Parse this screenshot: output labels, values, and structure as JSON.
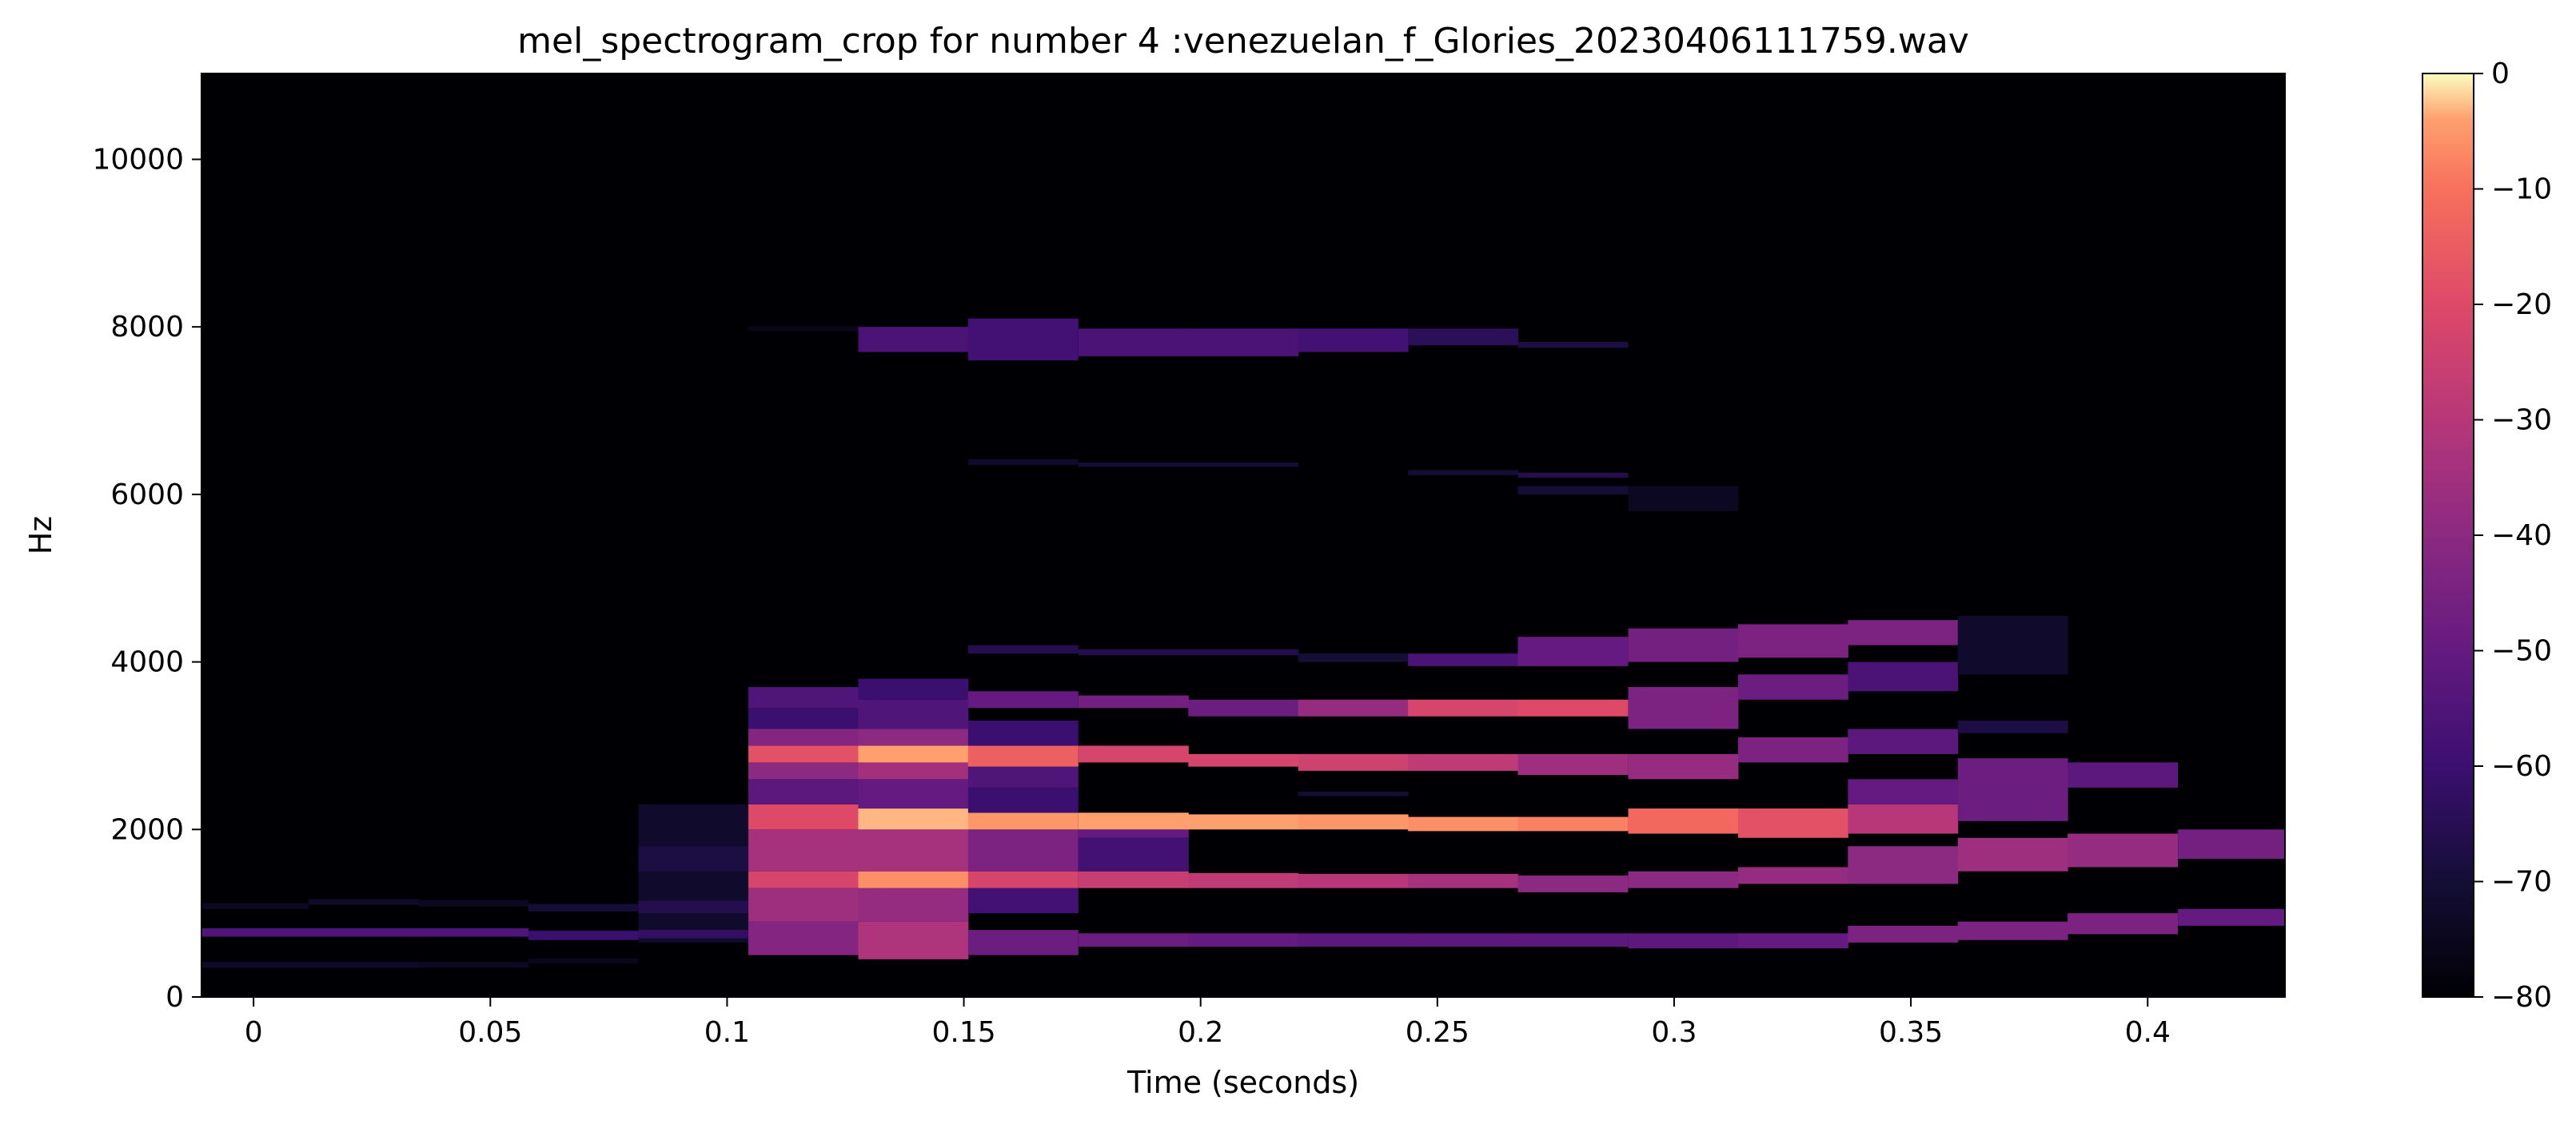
{
  "chart_data": {
    "type": "heatmap",
    "title": "mel_spectrogram_crop for number 4 :venezuelan_f_Glories_20230406111759.wav",
    "xlabel": "Time (seconds)",
    "ylabel": "Hz",
    "xlim": [
      -0.011,
      0.429
    ],
    "ylim": [
      0,
      11025
    ],
    "x_ticks": [
      0,
      0.05,
      0.1,
      0.15,
      0.2,
      0.25,
      0.3,
      0.35,
      0.4
    ],
    "x_tick_labels": [
      "0",
      "0.05",
      "0.1",
      "0.15",
      "0.2",
      "0.25",
      "0.3",
      "0.35",
      "0.4"
    ],
    "y_ticks": [
      0,
      2000,
      4000,
      6000,
      8000,
      10000
    ],
    "y_tick_labels": [
      "0",
      "2000",
      "4000",
      "6000",
      "8000",
      "10000"
    ],
    "colormap": "magma",
    "background_db": -80,
    "frame_seconds": 0.0232,
    "colorbar": {
      "range": [
        -80,
        0
      ],
      "ticks": [
        0,
        -10,
        -20,
        -30,
        -40,
        -50,
        -60,
        -70,
        -80
      ],
      "tick_labels": [
        "0",
        "−10",
        "−20",
        "−30",
        "−40",
        "−50",
        "−60",
        "−70",
        "−80"
      ]
    },
    "frames": [
      {
        "t": 0.0,
        "bands": [
          [
            720,
            820,
            -55
          ],
          [
            350,
            420,
            -73
          ],
          [
            1050,
            1120,
            -74
          ]
        ]
      },
      {
        "t": 0.0232,
        "bands": [
          [
            720,
            820,
            -55
          ],
          [
            350,
            420,
            -73
          ],
          [
            1100,
            1170,
            -73
          ]
        ]
      },
      {
        "t": 0.0464,
        "bands": [
          [
            720,
            820,
            -55
          ],
          [
            350,
            420,
            -74
          ],
          [
            1080,
            1160,
            -74
          ]
        ]
      },
      {
        "t": 0.0696,
        "bands": [
          [
            680,
            790,
            -60
          ],
          [
            1020,
            1110,
            -70
          ],
          [
            400,
            460,
            -75
          ]
        ]
      },
      {
        "t": 0.0929,
        "bands": [
          [
            650,
            2300,
            -72
          ],
          [
            1000,
            1150,
            -66
          ],
          [
            1500,
            1800,
            -68
          ],
          [
            700,
            800,
            -62
          ]
        ]
      },
      {
        "t": 0.1161,
        "bands": [
          [
            500,
            900,
            -42
          ],
          [
            900,
            1300,
            -36
          ],
          [
            1300,
            1500,
            -22
          ],
          [
            1500,
            2000,
            -34
          ],
          [
            2000,
            2300,
            -20
          ],
          [
            2300,
            2600,
            -52
          ],
          [
            2600,
            2800,
            -40
          ],
          [
            2800,
            3000,
            -18
          ],
          [
            3000,
            3200,
            -42
          ],
          [
            3200,
            3450,
            -60
          ],
          [
            3450,
            3700,
            -55
          ],
          [
            7950,
            8010,
            -76
          ]
        ]
      },
      {
        "t": 0.1393,
        "bands": [
          [
            450,
            900,
            -32
          ],
          [
            900,
            1300,
            -38
          ],
          [
            1300,
            1500,
            -6
          ],
          [
            1500,
            2000,
            -34
          ],
          [
            2000,
            2250,
            -3
          ],
          [
            2250,
            2600,
            -50
          ],
          [
            2600,
            2800,
            -35
          ],
          [
            2800,
            3000,
            -4
          ],
          [
            3000,
            3200,
            -40
          ],
          [
            3200,
            3550,
            -55
          ],
          [
            3550,
            3800,
            -60
          ],
          [
            7700,
            8000,
            -56
          ]
        ]
      },
      {
        "t": 0.1625,
        "bands": [
          [
            500,
            800,
            -48
          ],
          [
            1000,
            1300,
            -58
          ],
          [
            1300,
            1500,
            -22
          ],
          [
            1500,
            2000,
            -44
          ],
          [
            2000,
            2200,
            -5
          ],
          [
            2200,
            2500,
            -60
          ],
          [
            2500,
            2750,
            -55
          ],
          [
            2750,
            3000,
            -14
          ],
          [
            3000,
            3300,
            -60
          ],
          [
            3450,
            3650,
            -50
          ],
          [
            4100,
            4200,
            -66
          ],
          [
            6350,
            6420,
            -72
          ],
          [
            7600,
            8100,
            -58
          ]
        ]
      },
      {
        "t": 0.1858,
        "bands": [
          [
            600,
            760,
            -48
          ],
          [
            1300,
            1500,
            -26
          ],
          [
            1500,
            1900,
            -58
          ],
          [
            1900,
            2000,
            -50
          ],
          [
            2000,
            2200,
            -4
          ],
          [
            2800,
            3000,
            -22
          ],
          [
            3450,
            3600,
            -46
          ],
          [
            4080,
            4150,
            -66
          ],
          [
            6330,
            6380,
            -70
          ],
          [
            7650,
            7980,
            -56
          ]
        ]
      },
      {
        "t": 0.209,
        "bands": [
          [
            600,
            760,
            -50
          ],
          [
            1300,
            1480,
            -28
          ],
          [
            2000,
            2180,
            -4
          ],
          [
            2750,
            2900,
            -22
          ],
          [
            3350,
            3550,
            -48
          ],
          [
            4080,
            4150,
            -66
          ],
          [
            6330,
            6380,
            -70
          ],
          [
            7650,
            7980,
            -56
          ]
        ]
      },
      {
        "t": 0.2322,
        "bands": [
          [
            600,
            760,
            -52
          ],
          [
            1300,
            1470,
            -30
          ],
          [
            2000,
            2180,
            -5
          ],
          [
            2400,
            2450,
            -70
          ],
          [
            2700,
            2900,
            -24
          ],
          [
            3350,
            3550,
            -38
          ],
          [
            4000,
            4100,
            -70
          ],
          [
            7700,
            7980,
            -58
          ]
        ]
      },
      {
        "t": 0.2554,
        "bands": [
          [
            600,
            760,
            -52
          ],
          [
            1300,
            1470,
            -34
          ],
          [
            1980,
            2150,
            -6
          ],
          [
            2700,
            2900,
            -28
          ],
          [
            3350,
            3550,
            -22
          ],
          [
            3950,
            4100,
            -56
          ],
          [
            6230,
            6290,
            -70
          ],
          [
            7780,
            7980,
            -64
          ]
        ]
      },
      {
        "t": 0.2786,
        "bands": [
          [
            600,
            760,
            -52
          ],
          [
            1250,
            1450,
            -40
          ],
          [
            1980,
            2150,
            -8
          ],
          [
            2650,
            2900,
            -36
          ],
          [
            3350,
            3550,
            -20
          ],
          [
            3950,
            4300,
            -50
          ],
          [
            6000,
            6100,
            -70
          ],
          [
            6200,
            6260,
            -66
          ],
          [
            7750,
            7820,
            -68
          ]
        ]
      },
      {
        "t": 0.3019,
        "bands": [
          [
            580,
            760,
            -52
          ],
          [
            1300,
            1500,
            -40
          ],
          [
            1950,
            2250,
            -12
          ],
          [
            2600,
            2900,
            -38
          ],
          [
            3200,
            3700,
            -44
          ],
          [
            4000,
            4400,
            -46
          ],
          [
            5800,
            6100,
            -74
          ]
        ]
      },
      {
        "t": 0.3251,
        "bands": [
          [
            580,
            760,
            -50
          ],
          [
            1350,
            1550,
            -38
          ],
          [
            1900,
            2250,
            -18
          ],
          [
            2800,
            3100,
            -44
          ],
          [
            3550,
            3850,
            -48
          ],
          [
            4050,
            4450,
            -44
          ]
        ]
      },
      {
        "t": 0.3483,
        "bands": [
          [
            650,
            850,
            -44
          ],
          [
            1350,
            1800,
            -40
          ],
          [
            1950,
            2300,
            -30
          ],
          [
            2300,
            2600,
            -50
          ],
          [
            2900,
            3200,
            -52
          ],
          [
            3650,
            4000,
            -56
          ],
          [
            4200,
            4500,
            -44
          ]
        ]
      },
      {
        "t": 0.3715,
        "bands": [
          [
            680,
            900,
            -44
          ],
          [
            1500,
            1900,
            -36
          ],
          [
            2100,
            2850,
            -48
          ],
          [
            3150,
            3300,
            -68
          ],
          [
            3850,
            4550,
            -72
          ]
        ]
      },
      {
        "t": 0.3947,
        "bands": [
          [
            750,
            1000,
            -44
          ],
          [
            1550,
            1950,
            -38
          ],
          [
            2500,
            2800,
            -52
          ]
        ]
      },
      {
        "t": 0.418,
        "bands": [
          [
            850,
            1050,
            -50
          ],
          [
            1650,
            2000,
            -46
          ]
        ]
      }
    ]
  }
}
